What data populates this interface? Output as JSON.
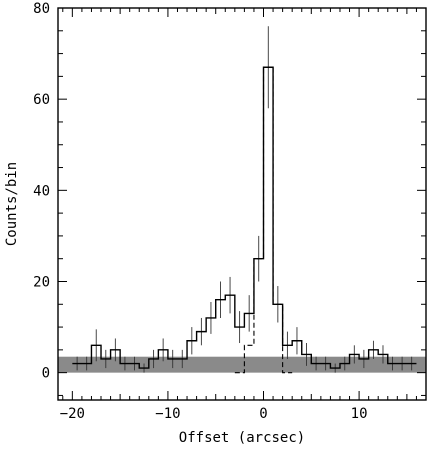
{
  "chart_data": {
    "type": "histogram",
    "xlabel": "Offset (arcsec)",
    "ylabel": "Counts/bin",
    "xlim": [
      -21.5,
      17
    ],
    "ylim": [
      -6,
      80
    ],
    "x_ticks": [
      -20,
      -10,
      0,
      10
    ],
    "y_ticks": [
      0,
      20,
      40,
      60,
      80
    ],
    "grid": false,
    "bin_width": 1,
    "background_band": {
      "y_min": 0,
      "y_max": 3.5,
      "color": "#8a8a8a"
    },
    "series": [
      {
        "style": "solid",
        "bin_edges": [
          -20,
          -19,
          -18,
          -17,
          -16,
          -15,
          -14,
          -13,
          -12,
          -11,
          -10,
          -9,
          -8,
          -7,
          -6,
          -5,
          -4,
          -3,
          -2,
          -1,
          0,
          1,
          2,
          3,
          4,
          5,
          6,
          7,
          8,
          9,
          10,
          11,
          12,
          13,
          14,
          15,
          16
        ],
        "counts": [
          2,
          2,
          6,
          3,
          5,
          2,
          2,
          1,
          3,
          5,
          3,
          3,
          7,
          9,
          12,
          16,
          17,
          10,
          13,
          25,
          67,
          15,
          6,
          7,
          4,
          2,
          2,
          1,
          2,
          4,
          3,
          5,
          4,
          2,
          2,
          2
        ],
        "errors": [
          1.5,
          1.5,
          3.5,
          2.0,
          2.5,
          1.5,
          1.5,
          1.0,
          2.0,
          2.5,
          2.0,
          2.0,
          3.0,
          3.0,
          3.5,
          4.0,
          4.0,
          3.5,
          4.0,
          5.0,
          9.0,
          4.0,
          3.0,
          3.0,
          2.5,
          1.5,
          1.5,
          1.0,
          1.5,
          2.0,
          2.0,
          2.0,
          2.0,
          1.5,
          1.5,
          1.5
        ]
      },
      {
        "style": "dashed",
        "bin_edges": [
          -3,
          -2,
          -1,
          0,
          1,
          2,
          3
        ],
        "counts": [
          0,
          6,
          25,
          67,
          15,
          0
        ],
        "errors": []
      }
    ]
  }
}
